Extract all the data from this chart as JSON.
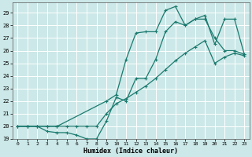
{
  "xlabel": "Humidex (Indice chaleur)",
  "bg_color": "#cce8e8",
  "grid_color": "#ffffff",
  "line_color": "#1a7a6e",
  "xlim": [
    -0.5,
    23.5
  ],
  "ylim": [
    19.0,
    29.8
  ],
  "yticks": [
    19,
    20,
    21,
    22,
    23,
    24,
    25,
    26,
    27,
    28,
    29
  ],
  "xticks": [
    0,
    1,
    2,
    3,
    4,
    5,
    6,
    7,
    8,
    9,
    10,
    11,
    12,
    13,
    14,
    15,
    16,
    17,
    18,
    19,
    20,
    21,
    22,
    23
  ],
  "line1_x": [
    0,
    1,
    2,
    3,
    4,
    5,
    6,
    7,
    8,
    9,
    10,
    11,
    12,
    13,
    14,
    15,
    16,
    17,
    18,
    19,
    20,
    21,
    22,
    23
  ],
  "line1_y": [
    20.0,
    20.0,
    20.0,
    19.6,
    19.5,
    19.5,
    19.3,
    19.0,
    19.0,
    20.4,
    22.3,
    22.0,
    23.8,
    23.8,
    25.3,
    27.5,
    28.3,
    28.0,
    28.5,
    28.5,
    27.0,
    26.0,
    26.0,
    25.7
  ],
  "line2_x": [
    0,
    1,
    2,
    3,
    4,
    9,
    10,
    11,
    12,
    13,
    14,
    15,
    16,
    17,
    18,
    19,
    20,
    21,
    22,
    23
  ],
  "line2_y": [
    20.0,
    20.0,
    20.0,
    20.0,
    20.0,
    22.0,
    22.5,
    25.3,
    27.4,
    27.5,
    27.5,
    29.2,
    29.5,
    28.0,
    28.5,
    28.8,
    26.5,
    28.5,
    28.5,
    25.7
  ],
  "line3_x": [
    0,
    1,
    2,
    3,
    4,
    5,
    6,
    7,
    8,
    9,
    10,
    11,
    12,
    13,
    14,
    15,
    16,
    17,
    18,
    19,
    20,
    21,
    22,
    23
  ],
  "line3_y": [
    20.0,
    20.0,
    20.0,
    20.0,
    20.0,
    20.0,
    20.0,
    20.0,
    20.0,
    21.0,
    21.8,
    22.2,
    22.7,
    23.2,
    23.8,
    24.5,
    25.2,
    25.8,
    26.3,
    26.8,
    25.0,
    25.5,
    25.8,
    25.6
  ]
}
